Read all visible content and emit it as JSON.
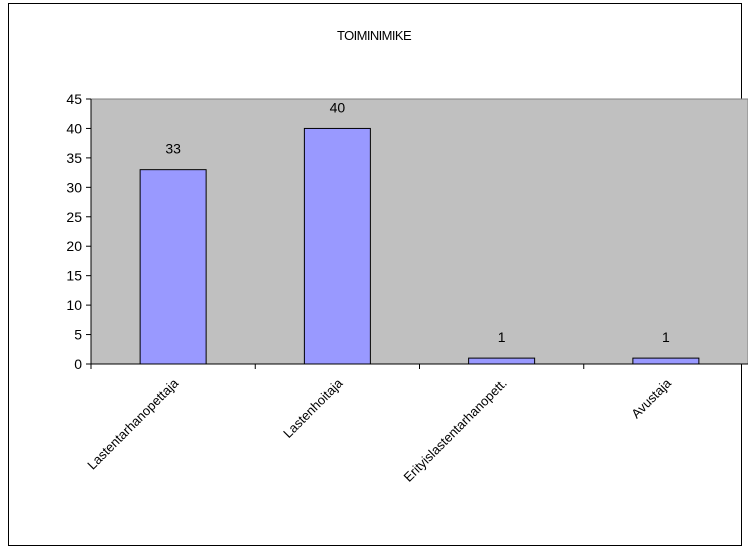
{
  "chart_data": {
    "type": "bar",
    "title": "TOIMINIMIKE",
    "categories": [
      "Lastentarhanopettaja",
      "Lastenhoitaja",
      "Erityislastentarhanopett.",
      "Avustaja"
    ],
    "values": [
      33,
      40,
      1,
      1
    ],
    "data_labels": [
      "33",
      "40",
      "1",
      "1"
    ],
    "ylim": [
      0,
      45
    ],
    "y_ticks": [
      0,
      5,
      10,
      15,
      20,
      25,
      30,
      35,
      40,
      45
    ],
    "xlabel": "",
    "ylabel": "",
    "grid": false,
    "legend": "none",
    "colors": {
      "plot_background": "#c0c0c0",
      "bar_fill": "#9999ff",
      "bar_stroke": "#000000"
    }
  }
}
